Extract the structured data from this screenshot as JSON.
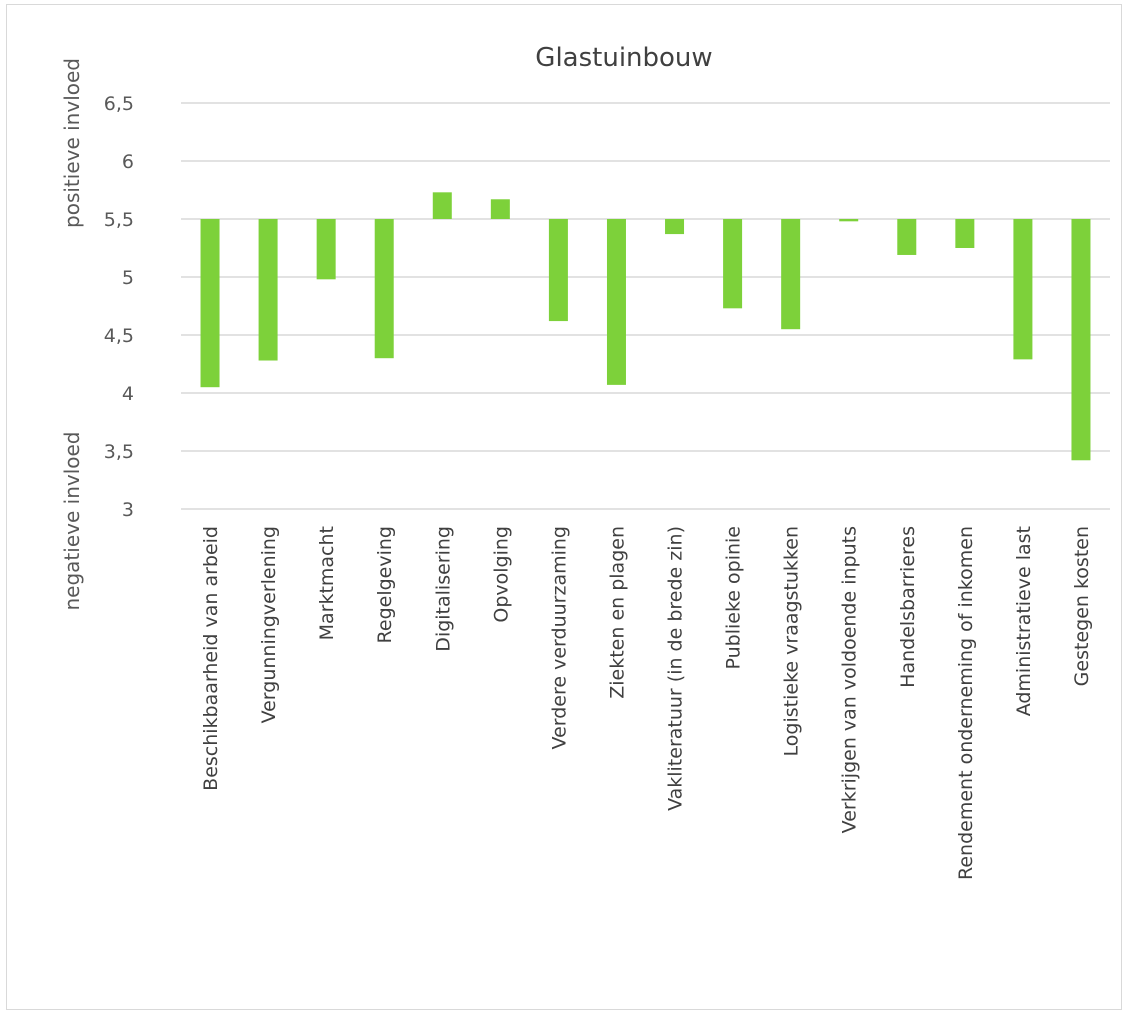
{
  "chart_data": {
    "type": "bar",
    "title": "Glastuinbouw",
    "baseline": 5.5,
    "ylim": [
      3,
      6.5
    ],
    "yticks": [
      "3",
      "3,5",
      "4",
      "4,5",
      "5",
      "5,5",
      "6",
      "6,5"
    ],
    "ytick_values": [
      3,
      3.5,
      4,
      4.5,
      5,
      5.5,
      6,
      6.5
    ],
    "side_labels": {
      "positive": "positieve invloed",
      "negative": "negatieve invloed"
    },
    "grid": true,
    "bar_color": "#7dd13a",
    "categories": [
      "Beschikbaarheid van arbeid",
      "Vergunningverlening",
      "Marktmacht",
      "Regelgeving",
      "Digitalisering",
      "Opvolging",
      "Verdere verduurzaming",
      "Ziekten en plagen",
      "Vakliteratuur (in de brede zin)",
      "Publieke opinie",
      "Logistieke vraagstukken",
      "Verkrijgen van voldoende inputs",
      "Handelsbarrieres",
      "Rendement onderneming of inkomen",
      "Administratieve last",
      "Gestegen kosten"
    ],
    "values": [
      4.05,
      4.28,
      4.98,
      4.3,
      5.73,
      5.67,
      4.62,
      4.07,
      5.37,
      4.73,
      4.55,
      5.48,
      5.19,
      5.25,
      4.29,
      3.42
    ]
  }
}
